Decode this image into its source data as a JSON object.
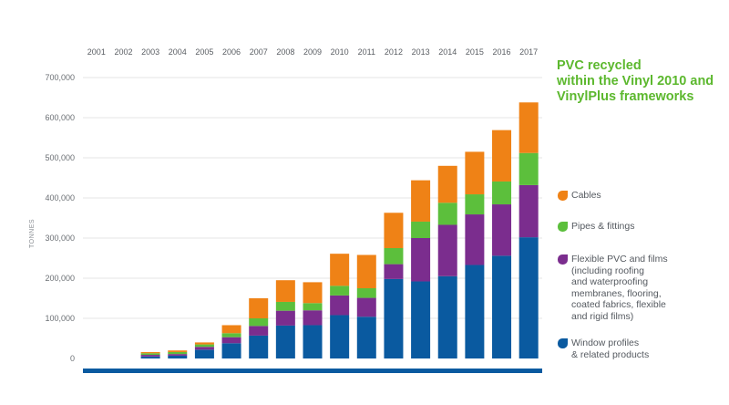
{
  "title_lines": [
    "PVC recycled",
    "within the Vinyl 2010 and",
    "VinylPlus frameworks"
  ],
  "chart_data": {
    "type": "bar",
    "stacked": true,
    "title": "PVC recycled within the Vinyl 2010 and VinylPlus frameworks",
    "xlabel": "",
    "ylabel": "TONNES",
    "ylim": [
      0,
      700000
    ],
    "yticks": [
      0,
      100000,
      200000,
      300000,
      400000,
      500000,
      600000,
      700000
    ],
    "ytick_labels": [
      "0",
      "100,000",
      "200,000",
      "300,000",
      "400,000",
      "500,000",
      "600,000",
      "700,000"
    ],
    "grid": true,
    "legend_position": "right",
    "categories": [
      "2001",
      "2002",
      "2003",
      "2004",
      "2005",
      "2006",
      "2007",
      "2008",
      "2009",
      "2010",
      "2011",
      "2012",
      "2013",
      "2014",
      "2015",
      "2016",
      "2017"
    ],
    "series": [
      {
        "name": "Window profiles & related products",
        "color": "#0a5aa0",
        "values": [
          0,
          0,
          5000,
          7000,
          22000,
          38000,
          57000,
          82000,
          83000,
          108000,
          104000,
          198000,
          192000,
          205000,
          233000,
          256000,
          302000
        ]
      },
      {
        "name": "Flexible PVC and films (including roofing and waterproofing membranes, flooring, coated fabrics, flexible and rigid films)",
        "color": "#7b2d8e",
        "values": [
          0,
          0,
          4000,
          4000,
          7000,
          15000,
          24000,
          37000,
          37000,
          49000,
          47000,
          37000,
          108000,
          128000,
          126000,
          128000,
          130000
        ]
      },
      {
        "name": "Pipes & fittings",
        "color": "#5cbf3c",
        "values": [
          0,
          0,
          4000,
          5000,
          6000,
          10000,
          19000,
          22000,
          18000,
          24000,
          24000,
          40000,
          41000,
          55000,
          50000,
          57000,
          80000
        ]
      },
      {
        "name": "Cables",
        "color": "#ef8216",
        "values": [
          0,
          0,
          3000,
          4000,
          5000,
          20000,
          50000,
          54000,
          52000,
          80000,
          83000,
          88000,
          103000,
          92000,
          106000,
          128000,
          126000
        ]
      }
    ]
  },
  "legend": [
    {
      "lines": [
        "Cables"
      ],
      "color": "#ef8216"
    },
    {
      "lines": [
        "Pipes & fittings"
      ],
      "color": "#5cbf3c"
    },
    {
      "lines": [
        "Flexible PVC and films",
        "(including roofing",
        "and waterproofing",
        "membranes, flooring,",
        "coated fabrics, flexible",
        "and rigid films)"
      ],
      "color": "#7b2d8e"
    },
    {
      "lines": [
        "Window profiles",
        "& related products"
      ],
      "color": "#0a5aa0"
    }
  ],
  "colors": {
    "baseline": "#0a5aa0",
    "grid": "#dcdcdc",
    "title": "#5cb82e"
  }
}
